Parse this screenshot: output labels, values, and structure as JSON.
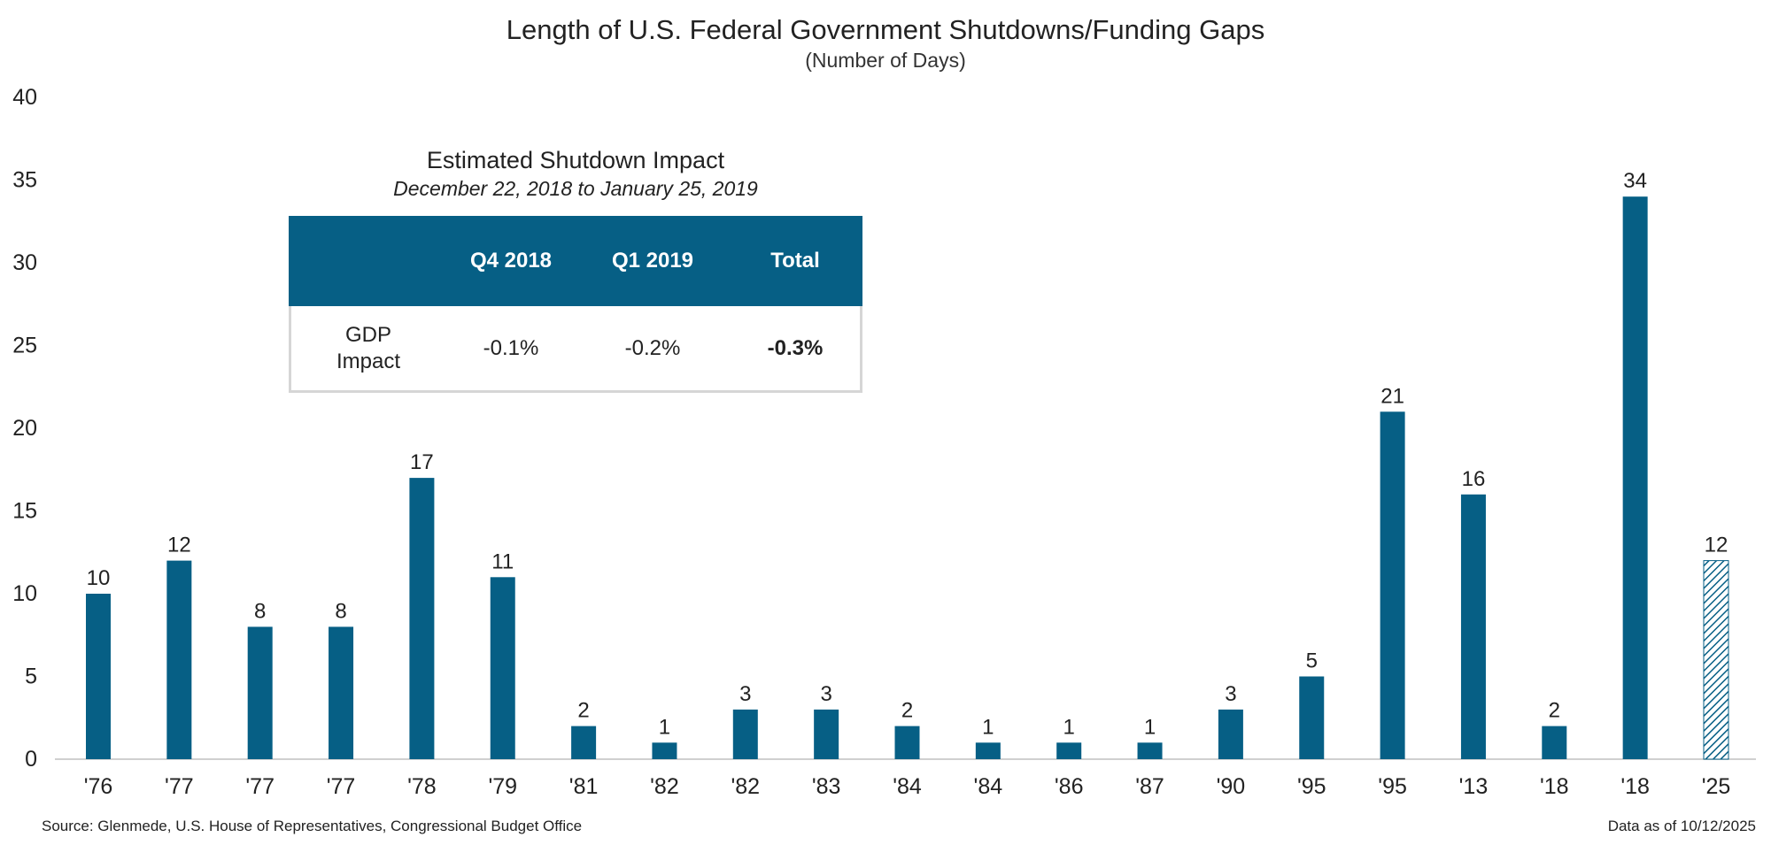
{
  "chart_data": {
    "type": "bar",
    "title": "Length of U.S. Federal Government Shutdowns/Funding Gaps",
    "subtitle": "(Number of Days)",
    "categories": [
      "'76",
      "'77",
      "'77",
      "'77",
      "'78",
      "'79",
      "'81",
      "'82",
      "'82",
      "'83",
      "'84",
      "'84",
      "'86",
      "'87",
      "'90",
      "'95",
      "'95",
      "'13",
      "'18",
      "'18",
      "'25"
    ],
    "values": [
      10,
      12,
      8,
      8,
      17,
      11,
      2,
      1,
      3,
      3,
      2,
      1,
      1,
      1,
      3,
      5,
      21,
      16,
      2,
      34,
      12
    ],
    "data_labels": [
      "10",
      "12",
      "8",
      "8",
      "17",
      "11",
      "2",
      "1",
      "3",
      "3",
      "2",
      "1",
      "1",
      "1",
      "3",
      "5",
      "21",
      "16",
      "2",
      "34",
      "12"
    ],
    "hatched": [
      false,
      false,
      false,
      false,
      false,
      false,
      false,
      false,
      false,
      false,
      false,
      false,
      false,
      false,
      false,
      false,
      false,
      false,
      false,
      false,
      true
    ],
    "ylim": [
      0,
      40
    ],
    "yticks": [
      "0",
      "5",
      "10",
      "15",
      "20",
      "25",
      "30",
      "35",
      "40"
    ],
    "xlabel": "",
    "ylabel": "",
    "grid": false,
    "bar_color": "#065f85",
    "axis_color": "#d0d0d0"
  },
  "inset": {
    "title": "Estimated Shutdown Impact",
    "subtitle": "December 22, 2018 to January 25, 2019",
    "headers": [
      "",
      "Q4 2018",
      "Q1 2019",
      "Total"
    ],
    "row_label": "GDP Impact",
    "values": [
      "-0.1%",
      "-0.2%",
      "-0.3%"
    ],
    "header_color": "#065f85",
    "border_color": "#d6d6d6"
  },
  "footer": {
    "source": "Source: Glenmede, U.S. House of Representatives, Congressional Budget Office",
    "data_as_of": "Data as of 10/12/2025"
  }
}
